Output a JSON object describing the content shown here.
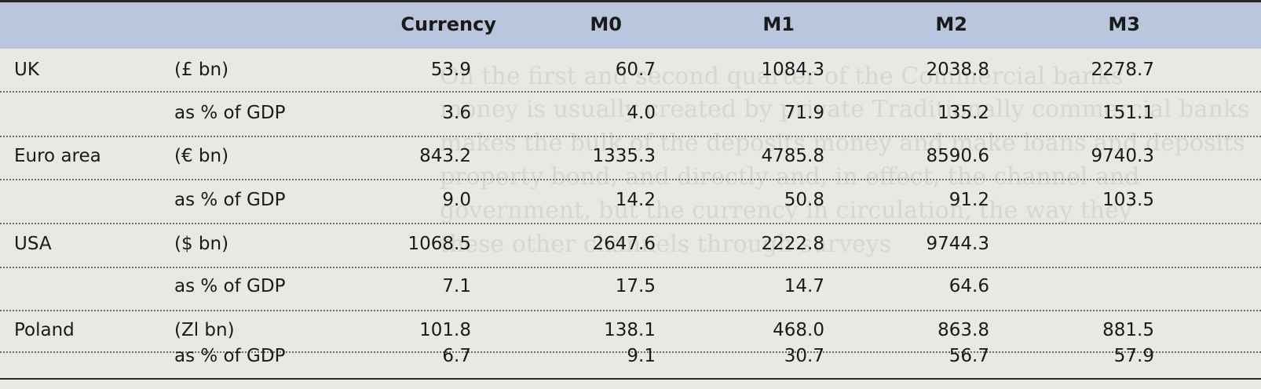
{
  "table": {
    "columns": [
      "Currency",
      "M0",
      "M1",
      "M2",
      "M3"
    ],
    "rows": [
      {
        "region": "UK",
        "unit": "(£ bn)",
        "values": [
          "53.9",
          "60.7",
          "1084.3",
          "2038.8",
          "2278.7"
        ]
      },
      {
        "region": "",
        "unit": "as % of GDP",
        "values": [
          "3.6",
          "4.0",
          "71.9",
          "135.2",
          "151.1"
        ]
      },
      {
        "region": "Euro area",
        "unit": "(€ bn)",
        "values": [
          "843.2",
          "1335.3",
          "4785.8",
          "8590.6",
          "9740.3"
        ]
      },
      {
        "region": "",
        "unit": "as % of GDP",
        "values": [
          "9.0",
          "14.2",
          "50.8",
          "91.2",
          "103.5"
        ]
      },
      {
        "region": "USA",
        "unit": "($ bn)",
        "values": [
          "1068.5",
          "2647.6",
          "2222.8",
          "9744.3",
          ""
        ]
      },
      {
        "region": "",
        "unit": "as % of GDP",
        "values": [
          "7.1",
          "17.5",
          "14.7",
          "64.6",
          ""
        ]
      },
      {
        "region": "Poland",
        "unit": "(Zl bn)",
        "values": [
          "101.8",
          "138.1",
          "468.0",
          "863.8",
          "881.5"
        ]
      },
      {
        "region": "",
        "unit": "as % of GDP",
        "values": [
          "6.7",
          "9.1",
          "30.7",
          "56.7",
          "57.9"
        ]
      }
    ]
  },
  "colors": {
    "header_band": "#b9c6dd",
    "paper": "#e9e8e4",
    "text": "#1a1a1a"
  }
}
